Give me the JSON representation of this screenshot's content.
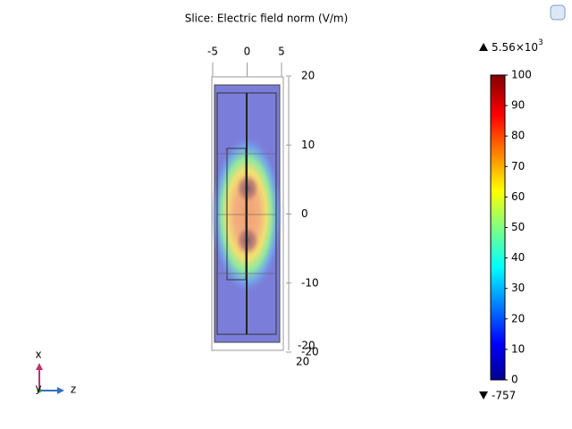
{
  "title": "Slice: Electric field norm (V/m)",
  "top_axis": {
    "range": [
      -5,
      5
    ],
    "ticks": [
      -5,
      0,
      5
    ]
  },
  "side_axis": {
    "range": [
      -20,
      20
    ],
    "ticks": [
      20,
      10,
      0,
      -10,
      -20
    ]
  },
  "depth_axis": {
    "ticks": [
      -20,
      20
    ]
  },
  "colorbar": {
    "range": [
      0,
      100
    ],
    "ticks": [
      0,
      10,
      20,
      30,
      40,
      50,
      60,
      70,
      80,
      90,
      100
    ],
    "max_mantissa": "5.56×10",
    "max_exponent": "3",
    "min": -757
  },
  "triad": {
    "x": "x",
    "y": "y",
    "z": "z"
  }
}
